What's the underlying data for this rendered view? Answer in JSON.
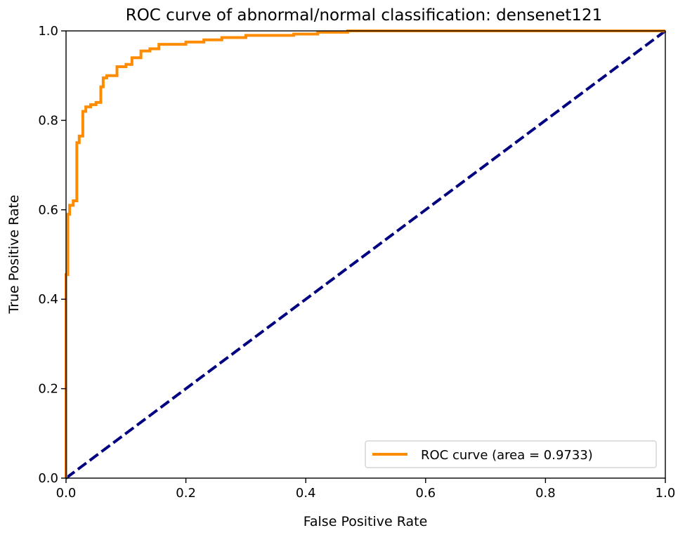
{
  "chart_data": {
    "type": "line",
    "title": "ROC curve of abnormal/normal classification: densenet121",
    "xlabel": "False Positive Rate",
    "ylabel": "True Positive Rate",
    "xlim": [
      0.0,
      1.0
    ],
    "ylim": [
      0.0,
      1.0
    ],
    "xticks": [
      "0.0",
      "0.2",
      "0.4",
      "0.6",
      "0.8",
      "1.0"
    ],
    "yticks": [
      "0.0",
      "0.2",
      "0.4",
      "0.6",
      "0.8",
      "1.0"
    ],
    "grid": false,
    "legend_position": "lower-right",
    "series": [
      {
        "name": "ROC curve (area = 0.9733)",
        "color": "#ff8c00",
        "style": "solid",
        "x": [
          0.0,
          0.0,
          0.003,
          0.003,
          0.006,
          0.006,
          0.012,
          0.012,
          0.018,
          0.018,
          0.022,
          0.022,
          0.028,
          0.028,
          0.033,
          0.033,
          0.041,
          0.041,
          0.05,
          0.05,
          0.058,
          0.058,
          0.062,
          0.062,
          0.068,
          0.068,
          0.085,
          0.085,
          0.1,
          0.1,
          0.11,
          0.11,
          0.125,
          0.125,
          0.14,
          0.14,
          0.155,
          0.155,
          0.2,
          0.2,
          0.23,
          0.23,
          0.26,
          0.26,
          0.3,
          0.3,
          0.38,
          0.38,
          0.42,
          0.42,
          0.47,
          0.47,
          0.6,
          1.0
        ],
        "y": [
          0.0,
          0.455,
          0.455,
          0.59,
          0.59,
          0.61,
          0.61,
          0.62,
          0.62,
          0.75,
          0.75,
          0.765,
          0.765,
          0.82,
          0.82,
          0.83,
          0.83,
          0.835,
          0.835,
          0.84,
          0.84,
          0.875,
          0.875,
          0.895,
          0.895,
          0.9,
          0.9,
          0.92,
          0.92,
          0.925,
          0.925,
          0.94,
          0.94,
          0.955,
          0.955,
          0.96,
          0.96,
          0.97,
          0.97,
          0.975,
          0.975,
          0.98,
          0.98,
          0.985,
          0.985,
          0.99,
          0.99,
          0.993,
          0.993,
          0.997,
          0.997,
          1.0,
          1.0,
          1.0
        ]
      },
      {
        "name": "",
        "color": "#000080",
        "style": "dashed",
        "x": [
          0.0,
          1.0
        ],
        "y": [
          0.0,
          1.0
        ]
      }
    ]
  }
}
